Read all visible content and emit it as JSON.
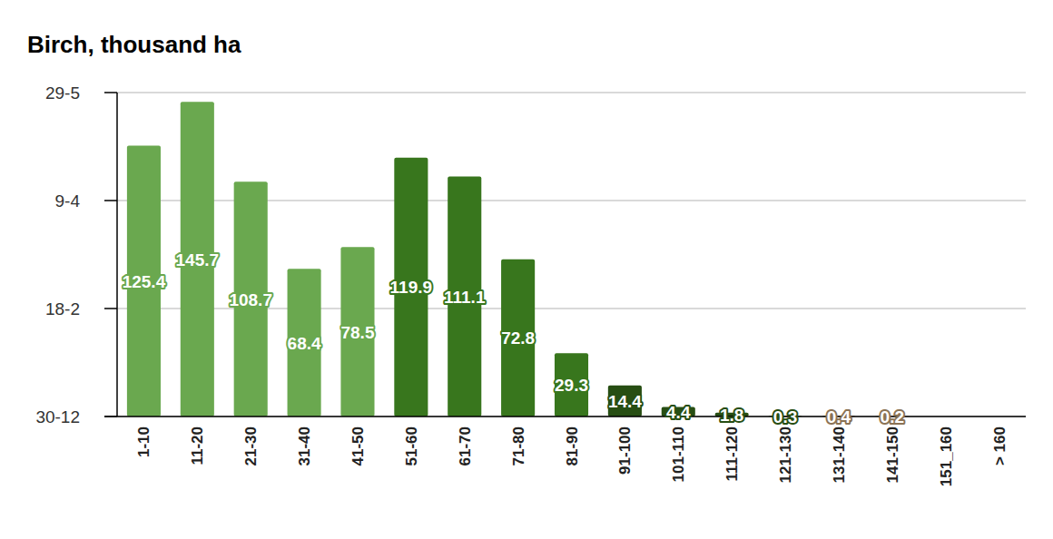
{
  "chart_data": {
    "type": "bar",
    "title": "Birch, thousand ha",
    "categories": [
      "1-10",
      "11-20",
      "21-30",
      "31-40",
      "41-50",
      "51-60",
      "61-70",
      "71-80",
      "81-90",
      "91-100",
      "101-110",
      "111-120",
      "121-130",
      "131-140",
      "141-150",
      "151_160",
      "> 160"
    ],
    "values": [
      125.4,
      145.7,
      108.7,
      68.4,
      78.5,
      119.9,
      111.1,
      72.8,
      29.3,
      14.4,
      4.4,
      1.8,
      0.3,
      0.4,
      0.2,
      null,
      null
    ],
    "colors": [
      "#6aa84f",
      "#6aa84f",
      "#6aa84f",
      "#6aa84f",
      "#6aa84f",
      "#38761d",
      "#38761d",
      "#38761d",
      "#38761d",
      "#274e13",
      "#274e13",
      "#274e13",
      "#274e13",
      "#8b7355",
      "#8b7355",
      "#8b7355",
      "#8b7355"
    ],
    "ylim": [
      0,
      150
    ],
    "yticks": [
      {
        "value": 0,
        "label": "30-12"
      },
      {
        "value": 50,
        "label": "18-2"
      },
      {
        "value": 100,
        "label": "9-4"
      },
      {
        "value": 150,
        "label": "29-5"
      }
    ],
    "grid": true,
    "data_labels": true
  }
}
